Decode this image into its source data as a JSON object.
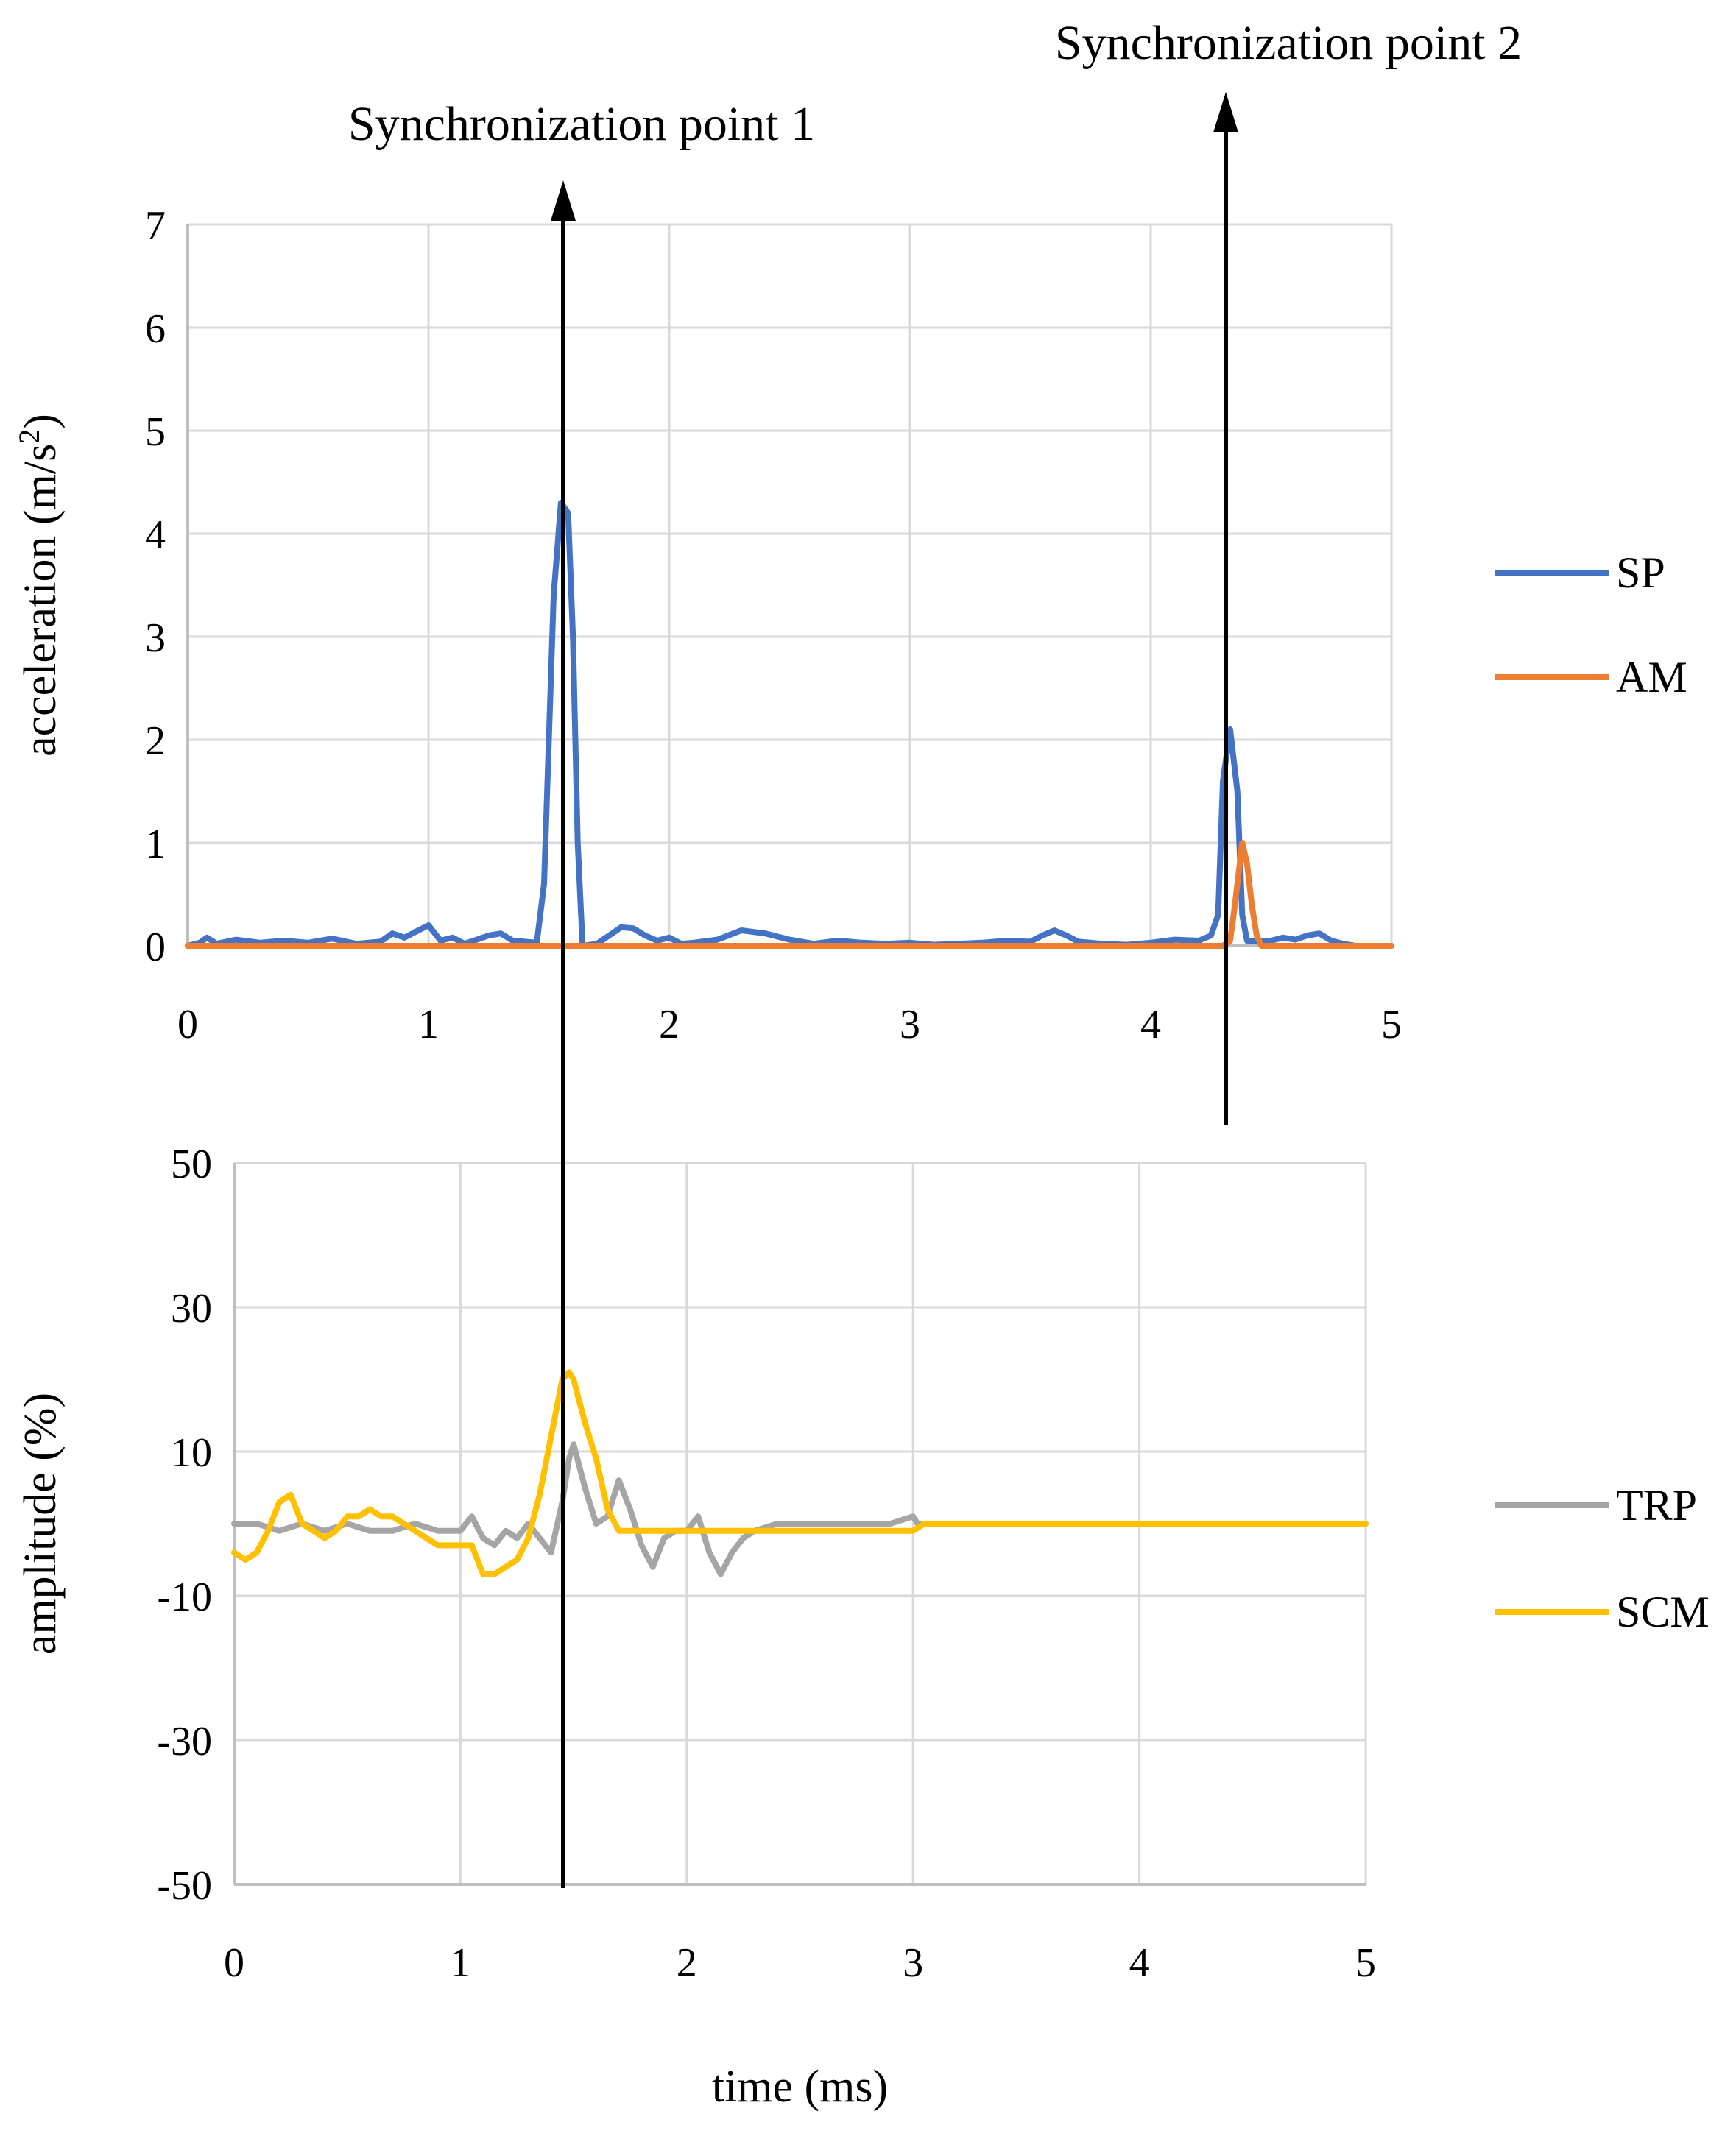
{
  "chart_data": [
    {
      "type": "line",
      "id": "top",
      "xlabel": "",
      "ylabel": "acceleration (m/s",
      "ylabel_superscript": "2",
      "ylabel_suffix": ")",
      "xlim": [
        0,
        5
      ],
      "ylim": [
        0,
        7
      ],
      "x_ticks": [
        0,
        1,
        2,
        3,
        4,
        5
      ],
      "y_ticks": [
        0,
        1,
        2,
        3,
        4,
        5,
        6,
        7
      ],
      "grid": true,
      "legend_position": "right",
      "series": [
        {
          "name": "SP",
          "color": "#4472C4",
          "points": [
            [
              0,
              0
            ],
            [
              0.05,
              0.03
            ],
            [
              0.08,
              0.08
            ],
            [
              0.12,
              0.02
            ],
            [
              0.2,
              0.06
            ],
            [
              0.3,
              0.03
            ],
            [
              0.4,
              0.05
            ],
            [
              0.5,
              0.03
            ],
            [
              0.6,
              0.07
            ],
            [
              0.7,
              0.02
            ],
            [
              0.8,
              0.04
            ],
            [
              0.85,
              0.12
            ],
            [
              0.9,
              0.08
            ],
            [
              0.95,
              0.14
            ],
            [
              1.0,
              0.2
            ],
            [
              1.05,
              0.05
            ],
            [
              1.1,
              0.08
            ],
            [
              1.15,
              0.02
            ],
            [
              1.2,
              0.06
            ],
            [
              1.25,
              0.1
            ],
            [
              1.3,
              0.12
            ],
            [
              1.35,
              0.05
            ],
            [
              1.4,
              0.04
            ],
            [
              1.45,
              0.03
            ],
            [
              1.48,
              0.6
            ],
            [
              1.5,
              2.0
            ],
            [
              1.52,
              3.4
            ],
            [
              1.55,
              4.3
            ],
            [
              1.58,
              4.2
            ],
            [
              1.6,
              3.0
            ],
            [
              1.62,
              1.0
            ],
            [
              1.64,
              0.0
            ],
            [
              1.7,
              0.02
            ],
            [
              1.75,
              0.1
            ],
            [
              1.8,
              0.18
            ],
            [
              1.85,
              0.17
            ],
            [
              1.9,
              0.1
            ],
            [
              1.95,
              0.05
            ],
            [
              2.0,
              0.08
            ],
            [
              2.05,
              0.02
            ],
            [
              2.1,
              0.03
            ],
            [
              2.2,
              0.06
            ],
            [
              2.3,
              0.15
            ],
            [
              2.4,
              0.12
            ],
            [
              2.5,
              0.06
            ],
            [
              2.6,
              0.02
            ],
            [
              2.7,
              0.05
            ],
            [
              2.8,
              0.03
            ],
            [
              2.9,
              0.02
            ],
            [
              3.0,
              0.03
            ],
            [
              3.1,
              0.01
            ],
            [
              3.2,
              0.02
            ],
            [
              3.3,
              0.03
            ],
            [
              3.4,
              0.05
            ],
            [
              3.5,
              0.04
            ],
            [
              3.55,
              0.1
            ],
            [
              3.6,
              0.15
            ],
            [
              3.65,
              0.1
            ],
            [
              3.7,
              0.04
            ],
            [
              3.8,
              0.02
            ],
            [
              3.9,
              0.01
            ],
            [
              4.0,
              0.03
            ],
            [
              4.1,
              0.06
            ],
            [
              4.2,
              0.05
            ],
            [
              4.25,
              0.1
            ],
            [
              4.28,
              0.3
            ],
            [
              4.3,
              1.6
            ],
            [
              4.33,
              2.1
            ],
            [
              4.36,
              1.5
            ],
            [
              4.38,
              0.3
            ],
            [
              4.4,
              0.05
            ],
            [
              4.45,
              0.04
            ],
            [
              4.5,
              0.05
            ],
            [
              4.55,
              0.08
            ],
            [
              4.6,
              0.06
            ],
            [
              4.65,
              0.1
            ],
            [
              4.7,
              0.12
            ],
            [
              4.75,
              0.05
            ],
            [
              4.8,
              0.02
            ],
            [
              4.85,
              0
            ],
            [
              5.0,
              0
            ]
          ]
        },
        {
          "name": "AM",
          "color": "#ED7D31",
          "points": [
            [
              0,
              0
            ],
            [
              1.5,
              0
            ],
            [
              4.3,
              0
            ],
            [
              4.33,
              0.05
            ],
            [
              4.35,
              0.4
            ],
            [
              4.38,
              1.0
            ],
            [
              4.4,
              0.8
            ],
            [
              4.42,
              0.4
            ],
            [
              4.44,
              0.1
            ],
            [
              4.46,
              0
            ],
            [
              5.0,
              0
            ]
          ]
        }
      ]
    },
    {
      "type": "line",
      "id": "bottom",
      "xlabel": "time (ms)",
      "ylabel": "amplitude (%)",
      "xlim": [
        0,
        5
      ],
      "ylim": [
        -50,
        50
      ],
      "x_ticks": [
        0,
        1,
        2,
        3,
        4,
        5
      ],
      "y_ticks": [
        50,
        30,
        10,
        -10,
        -30,
        -50
      ],
      "grid": true,
      "legend_position": "right",
      "series": [
        {
          "name": "TRP",
          "color": "#A5A5A5",
          "points": [
            [
              0,
              0
            ],
            [
              0.1,
              0
            ],
            [
              0.2,
              -1
            ],
            [
              0.3,
              0
            ],
            [
              0.4,
              -1
            ],
            [
              0.5,
              0
            ],
            [
              0.6,
              -1
            ],
            [
              0.7,
              -1
            ],
            [
              0.8,
              0
            ],
            [
              0.9,
              -1
            ],
            [
              1.0,
              -1
            ],
            [
              1.05,
              1
            ],
            [
              1.1,
              -2
            ],
            [
              1.15,
              -3
            ],
            [
              1.2,
              -1
            ],
            [
              1.25,
              -2
            ],
            [
              1.3,
              0
            ],
            [
              1.35,
              -2
            ],
            [
              1.4,
              -4
            ],
            [
              1.45,
              3
            ],
            [
              1.48,
              9
            ],
            [
              1.5,
              11
            ],
            [
              1.55,
              5
            ],
            [
              1.6,
              0
            ],
            [
              1.65,
              1
            ],
            [
              1.7,
              6
            ],
            [
              1.75,
              2
            ],
            [
              1.8,
              -3
            ],
            [
              1.85,
              -6
            ],
            [
              1.9,
              -2
            ],
            [
              1.95,
              -1
            ],
            [
              2.0,
              -1
            ],
            [
              2.05,
              1
            ],
            [
              2.1,
              -4
            ],
            [
              2.15,
              -7
            ],
            [
              2.2,
              -4
            ],
            [
              2.25,
              -2
            ],
            [
              2.3,
              -1
            ],
            [
              2.4,
              0
            ],
            [
              2.6,
              0
            ],
            [
              2.8,
              0
            ],
            [
              2.9,
              0
            ],
            [
              3.0,
              1
            ],
            [
              3.02,
              0
            ],
            [
              5.0,
              0
            ]
          ]
        },
        {
          "name": "SCM",
          "color": "#FFC000",
          "points": [
            [
              0,
              -4
            ],
            [
              0.05,
              -5
            ],
            [
              0.1,
              -4
            ],
            [
              0.15,
              -1
            ],
            [
              0.2,
              3
            ],
            [
              0.25,
              4
            ],
            [
              0.3,
              0
            ],
            [
              0.35,
              -1
            ],
            [
              0.4,
              -2
            ],
            [
              0.45,
              -1
            ],
            [
              0.5,
              1
            ],
            [
              0.55,
              1
            ],
            [
              0.6,
              2
            ],
            [
              0.65,
              1
            ],
            [
              0.7,
              1
            ],
            [
              0.8,
              -1
            ],
            [
              0.85,
              -2
            ],
            [
              0.9,
              -3
            ],
            [
              1.0,
              -3
            ],
            [
              1.05,
              -3
            ],
            [
              1.1,
              -7
            ],
            [
              1.15,
              -7
            ],
            [
              1.2,
              -6
            ],
            [
              1.25,
              -5
            ],
            [
              1.3,
              -2
            ],
            [
              1.35,
              4
            ],
            [
              1.4,
              12
            ],
            [
              1.45,
              20
            ],
            [
              1.48,
              21
            ],
            [
              1.5,
              20
            ],
            [
              1.55,
              14
            ],
            [
              1.6,
              9
            ],
            [
              1.65,
              2
            ],
            [
              1.7,
              -1
            ],
            [
              1.8,
              -1
            ],
            [
              2.0,
              -1
            ],
            [
              2.5,
              -1
            ],
            [
              3.0,
              -1
            ],
            [
              3.05,
              0
            ],
            [
              3.5,
              0
            ],
            [
              4.0,
              0
            ],
            [
              4.5,
              0
            ],
            [
              5.0,
              0
            ]
          ]
        }
      ]
    }
  ],
  "annotations": [
    {
      "label": "Synchronization point 1",
      "x_value": 1.55,
      "x_value_bottom": 1.45
    },
    {
      "label": "Synchronization point 2",
      "x_value": 4.35
    }
  ],
  "colors": {
    "arrow": "#000000",
    "grid": "#d9d9d9",
    "axis": "#bfbfbf"
  }
}
